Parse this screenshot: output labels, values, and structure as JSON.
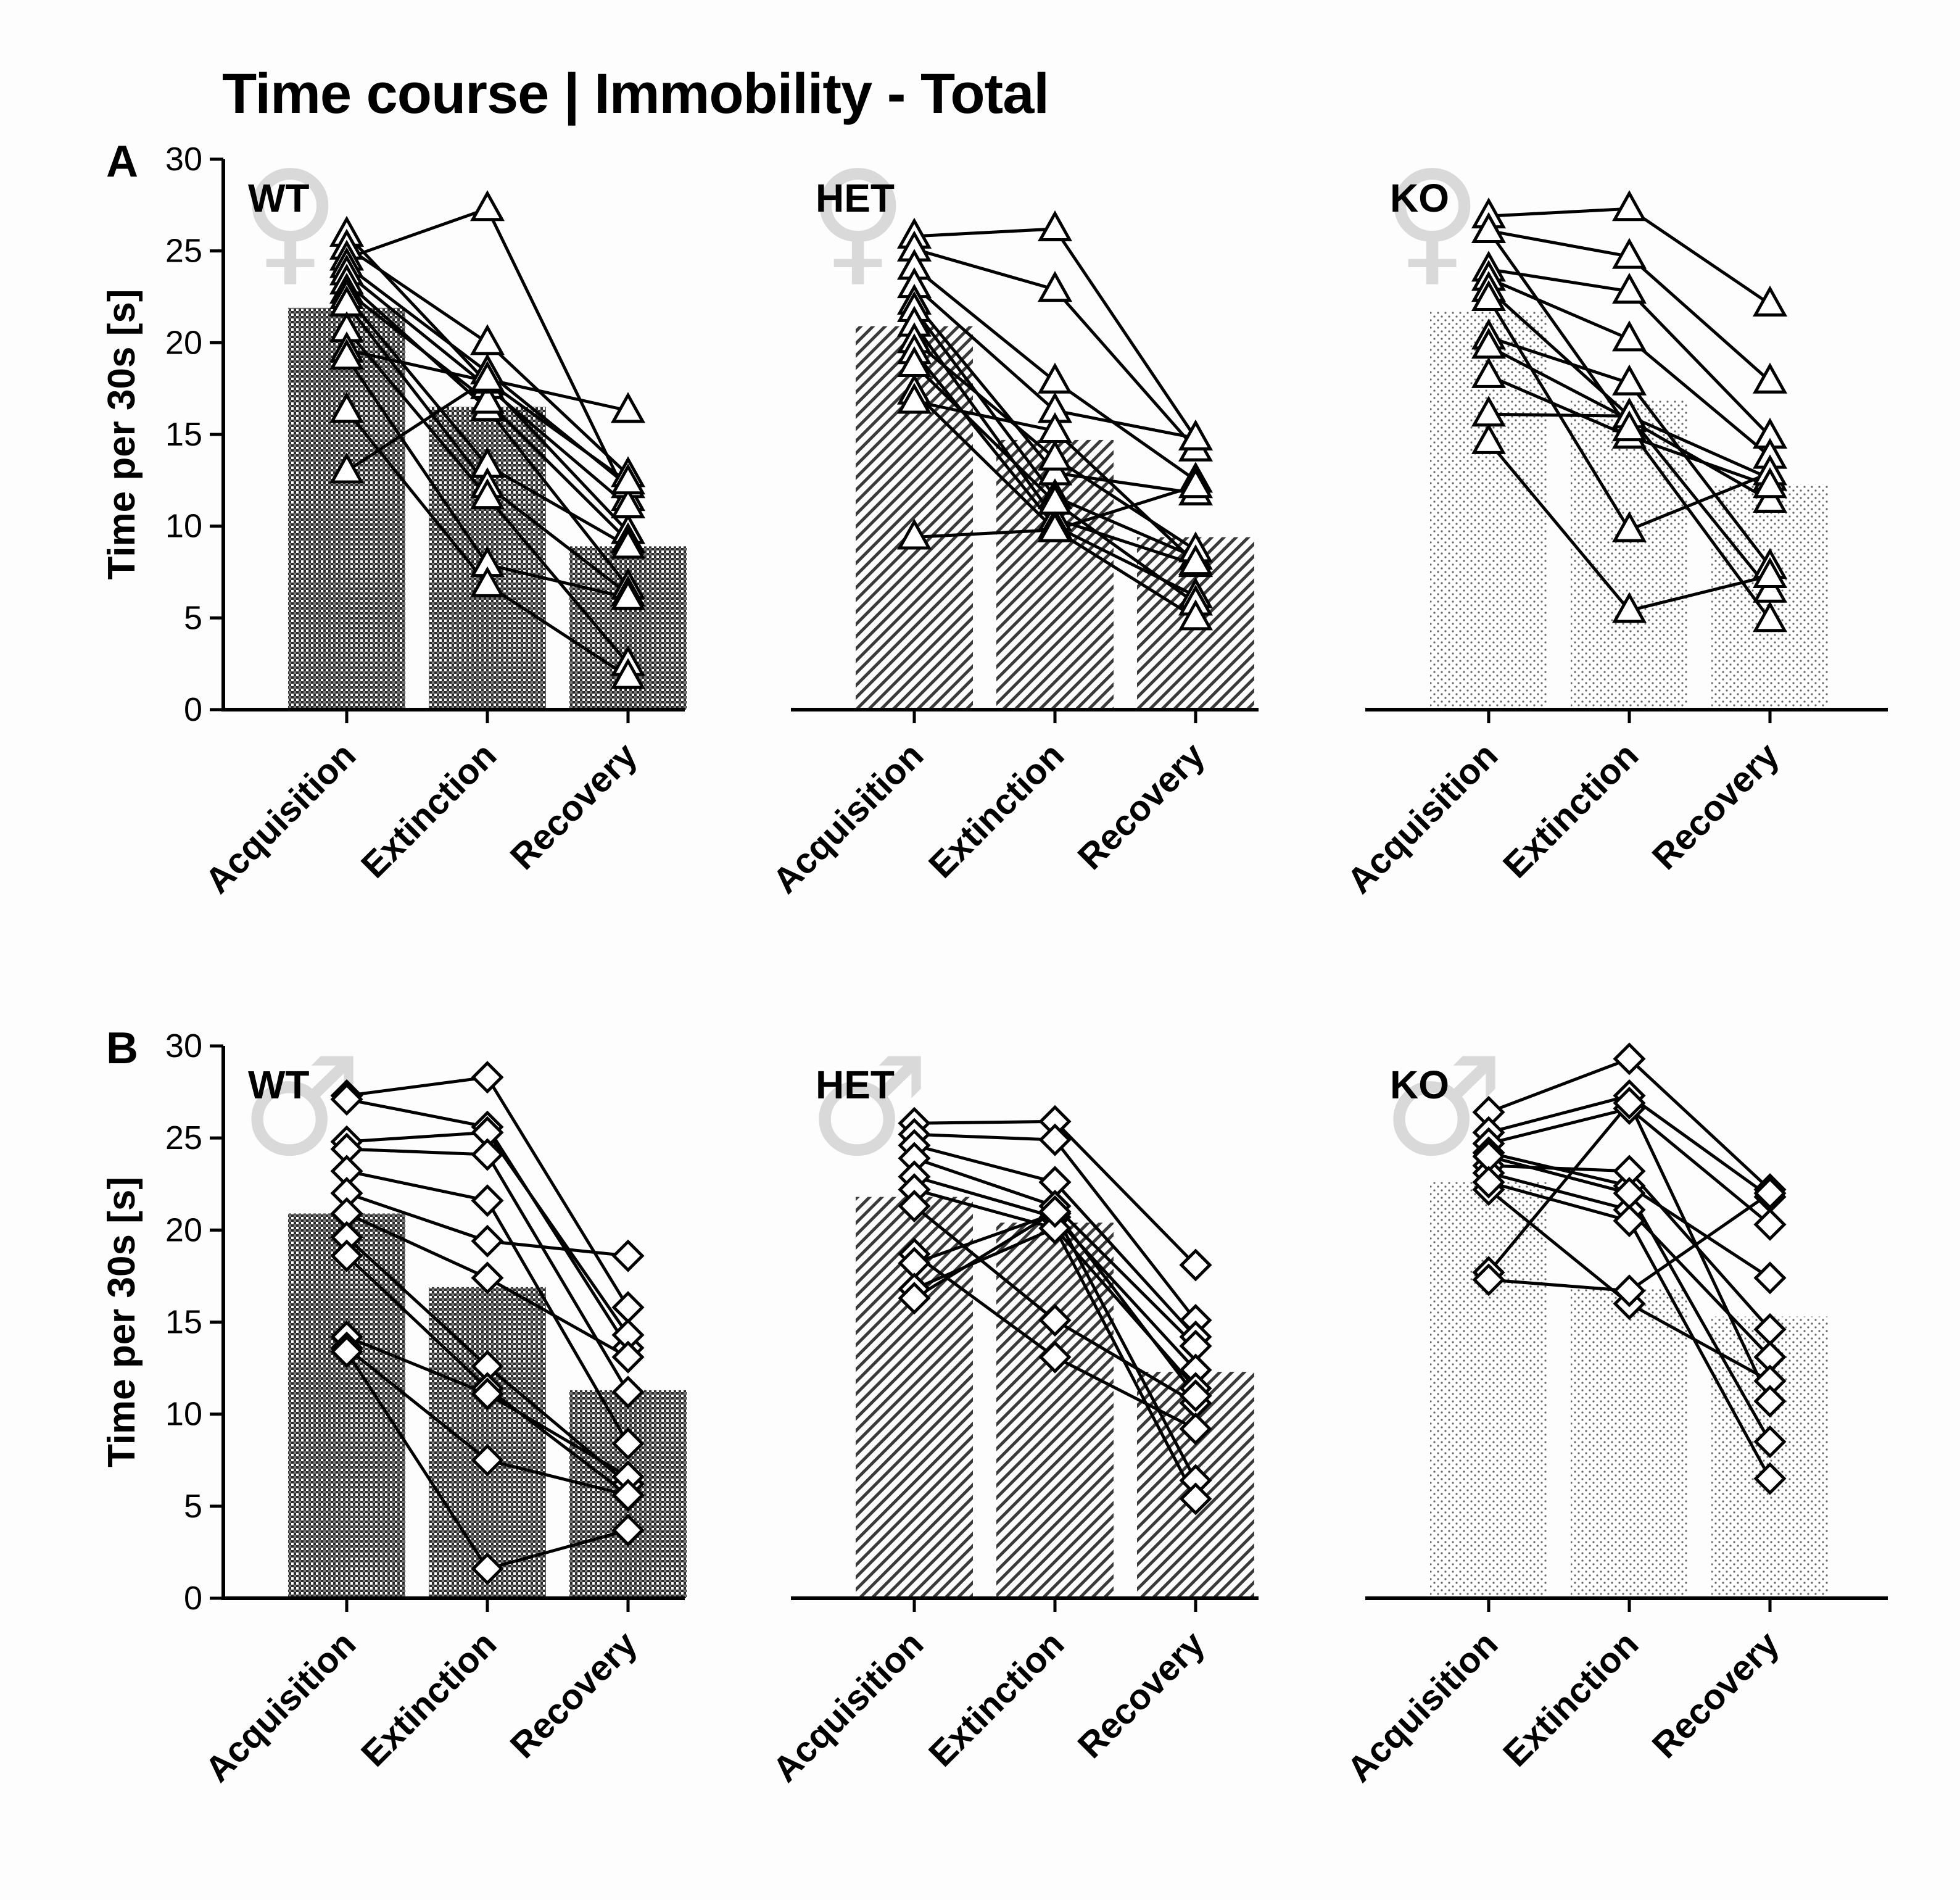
{
  "title": "Time course | Immobility - Total",
  "colors": {
    "ink": "#000000",
    "symbol_fill": "#ffffff",
    "sex_symbol": "#d9d9d9",
    "background": "#fdfdfd"
  },
  "chart_data": [
    {
      "panel_label": "A",
      "sex": "female",
      "sex_symbol": "♀",
      "genotype": "WT",
      "type": "bar+paired-line",
      "ylabel": "Time per 30s [s]",
      "ylim": [
        0,
        30
      ],
      "yticks": [
        "0",
        "5",
        "10",
        "15",
        "20",
        "25",
        "30"
      ],
      "categories": [
        "Acquisition",
        "Extinction",
        "Recovery"
      ],
      "bar_pattern": "checker",
      "marker": "triangle",
      "bar_means": [
        21.9,
        16.5,
        8.9
      ],
      "subjects": [
        [
          25.9,
          17.8,
          9.7
        ],
        [
          25.2,
          20.0,
          12.8
        ],
        [
          24.6,
          27.3,
          11.5
        ],
        [
          24.2,
          18.4,
          12.2
        ],
        [
          23.8,
          17.6,
          11.1
        ],
        [
          23.3,
          16.4,
          6.7
        ],
        [
          22.8,
          16.8,
          9.2
        ],
        [
          22.5,
          13.3,
          8.9
        ],
        [
          22.1,
          12.2,
          6.3
        ],
        [
          20.7,
          11.6,
          2.5
        ],
        [
          19.6,
          17.9,
          12.4
        ],
        [
          19.2,
          7.9,
          6.1
        ],
        [
          16.3,
          6.8,
          1.8
        ],
        [
          13.0,
          18.0,
          16.3
        ]
      ]
    },
    {
      "panel_label": "",
      "sex": "female",
      "sex_symbol": "♀",
      "genotype": "HET",
      "type": "bar+paired-line",
      "ylim": [
        0,
        30
      ],
      "categories": [
        "Acquisition",
        "Extinction",
        "Recovery"
      ],
      "bar_pattern": "hatch",
      "marker": "triangle",
      "bar_means": [
        20.9,
        14.7,
        9.4
      ],
      "subjects": [
        [
          25.8,
          26.2,
          14.8
        ],
        [
          25.1,
          22.9,
          14.2
        ],
        [
          24.1,
          17.9,
          12.5
        ],
        [
          23.1,
          16.3,
          14.8
        ],
        [
          22.2,
          12.9,
          11.8
        ],
        [
          21.8,
          11.6,
          8.3
        ],
        [
          21.0,
          10.4,
          7.9
        ],
        [
          20.1,
          13.7,
          8.7
        ],
        [
          19.5,
          10.0,
          6.2
        ],
        [
          18.8,
          11.3,
          5.8
        ],
        [
          17.3,
          9.8,
          5.0
        ],
        [
          16.8,
          15.2,
          8.0
        ],
        [
          9.4,
          9.8,
          12.2
        ]
      ]
    },
    {
      "panel_label": "",
      "sex": "female",
      "sex_symbol": "♀",
      "genotype": "KO",
      "type": "bar+paired-line",
      "ylim": [
        0,
        30
      ],
      "categories": [
        "Acquisition",
        "Extinction",
        "Recovery"
      ],
      "bar_pattern": "dots",
      "marker": "triangle",
      "bar_means": [
        21.7,
        16.9,
        12.3
      ],
      "subjects": [
        [
          26.9,
          27.3,
          22.1
        ],
        [
          26.1,
          24.7,
          17.9
        ],
        [
          24.0,
          22.8,
          14.9
        ],
        [
          23.5,
          20.2,
          13.8
        ],
        [
          22.9,
          16.0,
          12.6
        ],
        [
          22.4,
          9.8,
          12.9
        ],
        [
          20.3,
          17.8,
          7.8
        ],
        [
          19.8,
          15.8,
          11.4
        ],
        [
          18.2,
          14.9,
          12.2
        ],
        [
          16.1,
          16.0,
          6.5
        ],
        [
          14.6,
          5.4,
          7.3
        ],
        [
          26.1,
          15.3,
          4.9
        ]
      ]
    },
    {
      "panel_label": "B",
      "sex": "male",
      "sex_symbol": "♂",
      "genotype": "WT",
      "type": "bar+paired-line",
      "ylabel": "Time per 30s [s]",
      "ylim": [
        0,
        30
      ],
      "yticks": [
        "0",
        "5",
        "10",
        "15",
        "20",
        "25",
        "30"
      ],
      "categories": [
        "Acquisition",
        "Extinction",
        "Recovery"
      ],
      "bar_pattern": "checker",
      "marker": "diamond",
      "bar_means": [
        20.9,
        16.9,
        11.3
      ],
      "subjects": [
        [
          27.3,
          28.3,
          15.8
        ],
        [
          27.1,
          25.6,
          13.6
        ],
        [
          24.8,
          25.3,
          14.3
        ],
        [
          24.4,
          24.1,
          11.2
        ],
        [
          23.2,
          21.6,
          8.4
        ],
        [
          22.0,
          19.4,
          18.6
        ],
        [
          20.9,
          17.4,
          13.1
        ],
        [
          19.6,
          12.6,
          6.2
        ],
        [
          18.6,
          11.4,
          5.6
        ],
        [
          14.2,
          11.1,
          6.6
        ],
        [
          13.6,
          7.5,
          5.6
        ],
        [
          13.4,
          1.6,
          3.7
        ]
      ]
    },
    {
      "panel_label": "",
      "sex": "male",
      "sex_symbol": "♂",
      "genotype": "HET",
      "type": "bar+paired-line",
      "ylim": [
        0,
        30
      ],
      "categories": [
        "Acquisition",
        "Extinction",
        "Recovery"
      ],
      "bar_pattern": "hatch",
      "marker": "diamond",
      "bar_means": [
        21.8,
        20.4,
        12.3
      ],
      "subjects": [
        [
          25.8,
          25.9,
          18.1
        ],
        [
          25.2,
          24.9,
          15.1
        ],
        [
          24.6,
          22.6,
          14.2
        ],
        [
          23.9,
          21.3,
          13.7
        ],
        [
          22.9,
          20.7,
          12.4
        ],
        [
          22.2,
          20.1,
          11.4
        ],
        [
          21.3,
          15.1,
          10.6
        ],
        [
          18.7,
          13.1,
          9.2
        ],
        [
          18.2,
          20.9,
          6.4
        ],
        [
          16.8,
          20.1,
          5.4
        ],
        [
          16.3,
          21.0,
          11.0
        ]
      ]
    },
    {
      "panel_label": "",
      "sex": "male",
      "sex_symbol": "♂",
      "genotype": "KO",
      "type": "bar+paired-line",
      "ylim": [
        0,
        30
      ],
      "categories": [
        "Acquisition",
        "Extinction",
        "Recovery"
      ],
      "bar_pattern": "dots",
      "marker": "diamond",
      "bar_means": [
        22.6,
        16.8,
        15.3
      ],
      "subjects": [
        [
          26.4,
          29.3,
          22.2
        ],
        [
          25.3,
          27.3,
          21.8
        ],
        [
          24.7,
          26.6,
          20.3
        ],
        [
          24.2,
          22.4,
          17.4
        ],
        [
          23.5,
          23.2,
          14.6
        ],
        [
          23.1,
          21.1,
          13.1
        ],
        [
          22.2,
          16.0,
          11.8
        ],
        [
          17.7,
          26.9,
          10.7
        ],
        [
          17.3,
          16.7,
          22.0
        ],
        [
          24.0,
          22.0,
          8.5
        ],
        [
          22.6,
          20.5,
          6.5
        ]
      ]
    }
  ]
}
